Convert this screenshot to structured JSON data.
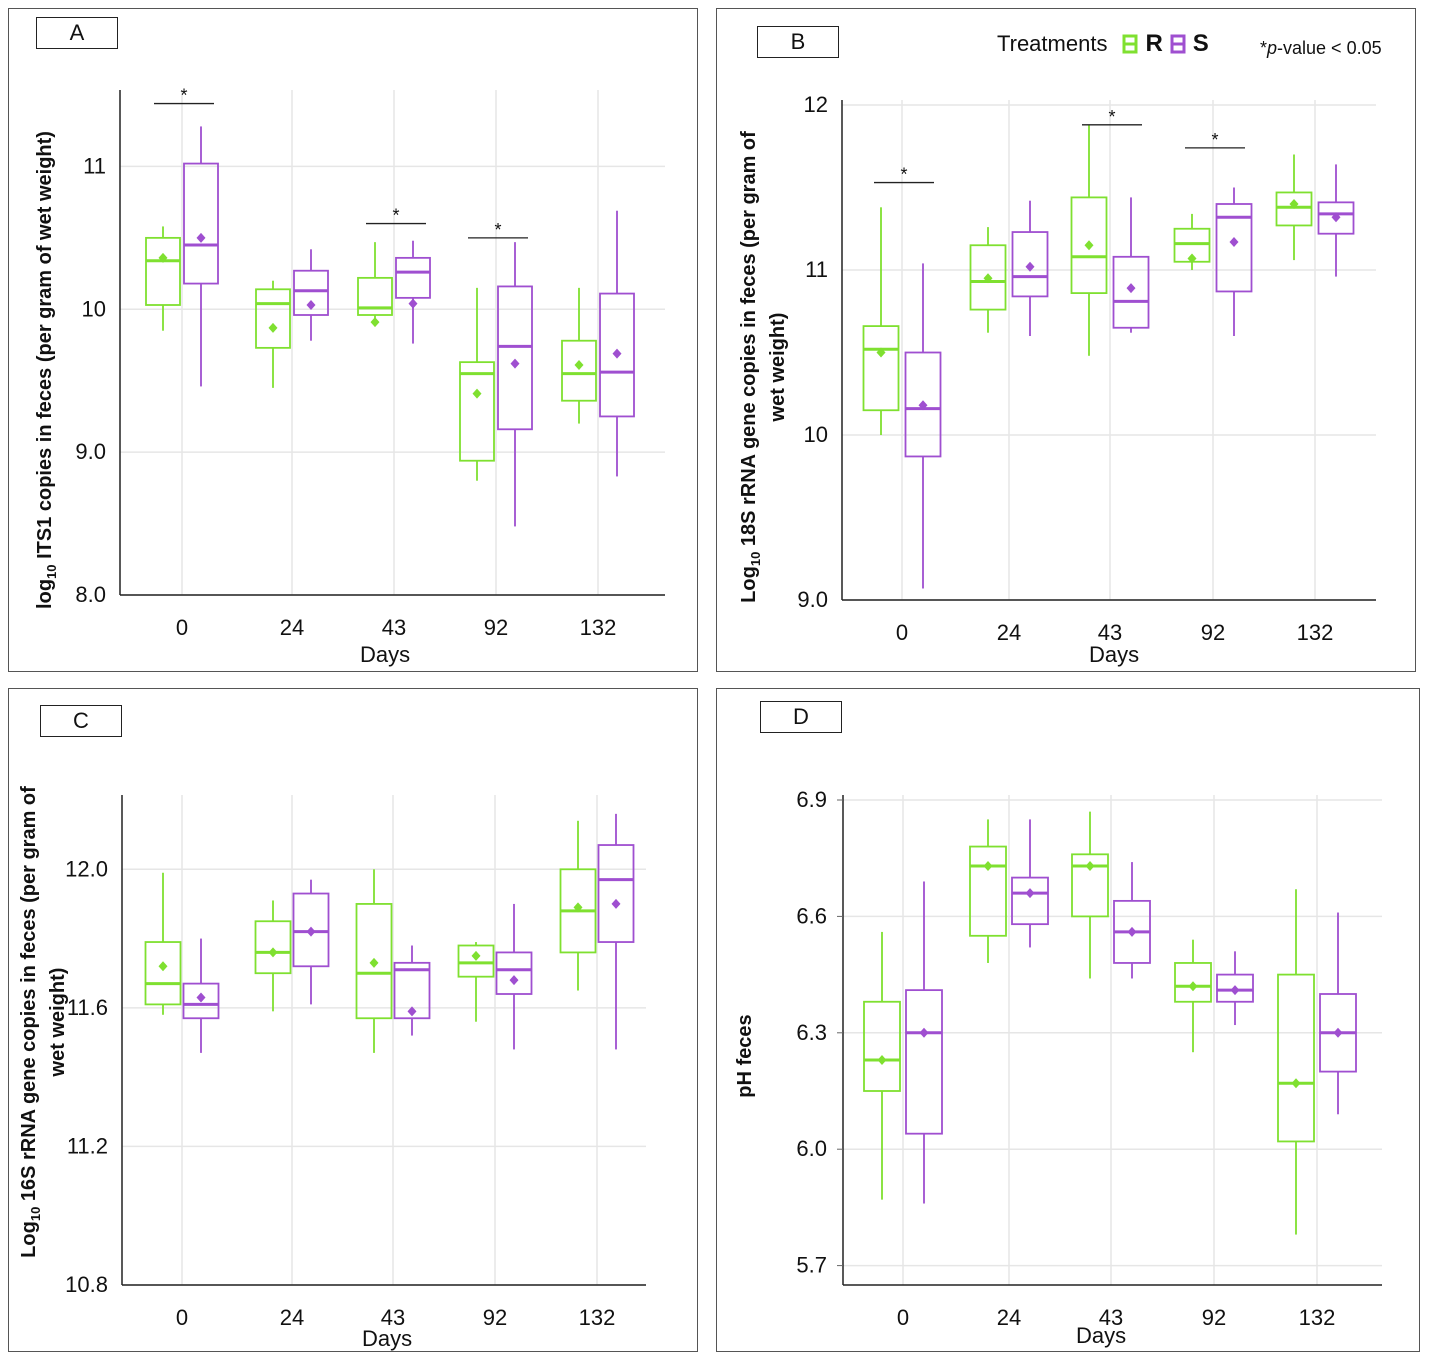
{
  "colors": {
    "R": "#7fe030",
    "S": "#9f4fd0",
    "grid": "#e6e6e6",
    "axis": "#222222"
  },
  "legend": {
    "title": "Treatments",
    "keys": [
      "R",
      "S"
    ],
    "pvalue_star": "*",
    "pvalue_italic": "p",
    "pvalue_rest": "-value < 0.05"
  },
  "panels": [
    {
      "id": "A",
      "label": "A",
      "ylabel_html": "log<sub>10</sub> ITS1 copies in feces (per gram of wet weight)",
      "chart_data": {
        "type": "boxplot",
        "xlabel": "Days",
        "categories": [
          "0",
          "24",
          "43",
          "92",
          "132"
        ],
        "ylim": [
          8.0,
          11.5
        ],
        "yticks": [
          8.0,
          9.0,
          10,
          11
        ],
        "ytick_labels": [
          "8.0",
          "9.0",
          "10",
          "11"
        ],
        "series": [
          {
            "name": "R",
            "boxes": [
              {
                "min": 9.85,
                "q1": 10.03,
                "median": 10.34,
                "q3": 10.5,
                "max": 10.58,
                "mean": 10.36
              },
              {
                "min": 9.45,
                "q1": 9.73,
                "median": 10.04,
                "q3": 10.14,
                "max": 10.2,
                "mean": 9.87
              },
              {
                "min": 9.92,
                "q1": 9.96,
                "median": 10.01,
                "q3": 10.22,
                "max": 10.47,
                "mean": 9.91
              },
              {
                "min": 8.8,
                "q1": 8.94,
                "median": 9.55,
                "q3": 9.63,
                "max": 10.15,
                "mean": 9.41
              },
              {
                "min": 9.2,
                "q1": 9.36,
                "median": 9.55,
                "q3": 9.78,
                "max": 10.15,
                "mean": 9.61
              }
            ]
          },
          {
            "name": "S",
            "boxes": [
              {
                "min": 9.46,
                "q1": 10.18,
                "median": 10.45,
                "q3": 11.02,
                "max": 11.28,
                "mean": 10.5
              },
              {
                "min": 9.78,
                "q1": 9.96,
                "median": 10.13,
                "q3": 10.27,
                "max": 10.42,
                "mean": 10.03
              },
              {
                "min": 9.76,
                "q1": 10.08,
                "median": 10.26,
                "q3": 10.36,
                "max": 10.48,
                "mean": 10.04
              },
              {
                "min": 8.48,
                "q1": 9.16,
                "median": 9.74,
                "q3": 10.16,
                "max": 10.47,
                "mean": 9.62
              },
              {
                "min": 8.83,
                "q1": 9.25,
                "median": 9.56,
                "q3": 10.11,
                "max": 10.69,
                "mean": 9.69
              }
            ]
          }
        ],
        "significance": [
          {
            "category": "0",
            "y": 11.44,
            "label": "*"
          },
          {
            "category": "43",
            "y": 10.6,
            "label": "*"
          },
          {
            "category": "92",
            "y": 10.5,
            "label": "*"
          }
        ]
      }
    },
    {
      "id": "B",
      "label": "B",
      "ylabel_html": "Log<sub>10</sub> 18S rRNA gene copies in feces (per gram of<br>wet weight)",
      "chart_data": {
        "type": "boxplot",
        "xlabel": "Days",
        "categories": [
          "0",
          "24",
          "43",
          "92",
          "132"
        ],
        "ylim": [
          9.0,
          12.0
        ],
        "yticks": [
          9.0,
          10,
          11,
          12
        ],
        "ytick_labels": [
          "9.0",
          "10",
          "11",
          "12"
        ],
        "series": [
          {
            "name": "R",
            "boxes": [
              {
                "min": 10.0,
                "q1": 10.15,
                "median": 10.52,
                "q3": 10.66,
                "max": 11.38,
                "mean": 10.5
              },
              {
                "min": 10.62,
                "q1": 10.76,
                "median": 10.93,
                "q3": 11.15,
                "max": 11.26,
                "mean": 10.95
              },
              {
                "min": 10.48,
                "q1": 10.86,
                "median": 11.08,
                "q3": 11.44,
                "max": 11.88,
                "mean": 11.15
              },
              {
                "min": 11.0,
                "q1": 11.05,
                "median": 11.16,
                "q3": 11.25,
                "max": 11.34,
                "mean": 11.07
              },
              {
                "min": 11.06,
                "q1": 11.27,
                "median": 11.38,
                "q3": 11.47,
                "max": 11.7,
                "mean": 11.4
              }
            ]
          },
          {
            "name": "S",
            "boxes": [
              {
                "min": 9.07,
                "q1": 9.87,
                "median": 10.16,
                "q3": 10.5,
                "max": 11.04,
                "mean": 10.18
              },
              {
                "min": 10.6,
                "q1": 10.84,
                "median": 10.96,
                "q3": 11.23,
                "max": 11.42,
                "mean": 11.02
              },
              {
                "min": 10.62,
                "q1": 10.65,
                "median": 10.81,
                "q3": 11.08,
                "max": 11.44,
                "mean": 10.89
              },
              {
                "min": 10.6,
                "q1": 10.87,
                "median": 11.32,
                "q3": 11.4,
                "max": 11.5,
                "mean": 11.17
              },
              {
                "min": 10.96,
                "q1": 11.22,
                "median": 11.34,
                "q3": 11.41,
                "max": 11.64,
                "mean": 11.32
              }
            ]
          }
        ],
        "significance": [
          {
            "category": "0",
            "y": 11.53,
            "label": "*"
          },
          {
            "category": "43",
            "y": 11.88,
            "label": "*"
          },
          {
            "category": "92",
            "y": 11.74,
            "label": "*"
          }
        ]
      }
    },
    {
      "id": "C",
      "label": "C",
      "ylabel_html": "Log<sub>10</sub> 16S rRNA gene copies in feces (per gram of<br>wet weight)",
      "chart_data": {
        "type": "boxplot",
        "xlabel": "Days",
        "categories": [
          "0",
          "24",
          "43",
          "92",
          "132"
        ],
        "ylim": [
          10.8,
          12.2
        ],
        "yticks": [
          10.8,
          11.2,
          11.6,
          12.0
        ],
        "ytick_labels": [
          "10.8",
          "11.2",
          "11.6",
          "12.0"
        ],
        "series": [
          {
            "name": "R",
            "boxes": [
              {
                "min": 11.58,
                "q1": 11.61,
                "median": 11.67,
                "q3": 11.79,
                "max": 11.99,
                "mean": 11.72
              },
              {
                "min": 11.59,
                "q1": 11.7,
                "median": 11.76,
                "q3": 11.85,
                "max": 11.91,
                "mean": 11.76
              },
              {
                "min": 11.47,
                "q1": 11.57,
                "median": 11.7,
                "q3": 11.9,
                "max": 12.0,
                "mean": 11.73
              },
              {
                "min": 11.56,
                "q1": 11.69,
                "median": 11.73,
                "q3": 11.78,
                "max": 11.79,
                "mean": 11.75
              },
              {
                "min": 11.65,
                "q1": 11.76,
                "median": 11.88,
                "q3": 12.0,
                "max": 12.14,
                "mean": 11.89
              }
            ]
          },
          {
            "name": "S",
            "boxes": [
              {
                "min": 11.47,
                "q1": 11.57,
                "median": 11.61,
                "q3": 11.67,
                "max": 11.8,
                "mean": 11.63
              },
              {
                "min": 11.61,
                "q1": 11.72,
                "median": 11.82,
                "q3": 11.93,
                "max": 11.97,
                "mean": 11.82
              },
              {
                "min": 11.52,
                "q1": 11.57,
                "median": 11.71,
                "q3": 11.73,
                "max": 11.78,
                "mean": 11.59
              },
              {
                "min": 11.48,
                "q1": 11.64,
                "median": 11.71,
                "q3": 11.76,
                "max": 11.9,
                "mean": 11.68
              },
              {
                "min": 11.48,
                "q1": 11.79,
                "median": 11.97,
                "q3": 12.07,
                "max": 12.16,
                "mean": 11.9
              }
            ]
          }
        ],
        "significance": []
      }
    },
    {
      "id": "D",
      "label": "D",
      "ylabel_html": "pH feces",
      "chart_data": {
        "type": "boxplot",
        "xlabel": "Days",
        "categories": [
          "0",
          "24",
          "43",
          "92",
          "132"
        ],
        "ylim": [
          5.65,
          6.9
        ],
        "yticks": [
          5.7,
          6.0,
          6.3,
          6.6,
          6.9
        ],
        "ytick_labels": [
          "5.7",
          "6.0",
          "6.3",
          "6.6",
          "6.9"
        ],
        "series": [
          {
            "name": "R",
            "boxes": [
              {
                "min": 5.87,
                "q1": 6.15,
                "median": 6.23,
                "q3": 6.38,
                "max": 6.56,
                "mean": 6.23
              },
              {
                "min": 6.48,
                "q1": 6.55,
                "median": 6.73,
                "q3": 6.78,
                "max": 6.85,
                "mean": 6.73
              },
              {
                "min": 6.44,
                "q1": 6.6,
                "median": 6.73,
                "q3": 6.76,
                "max": 6.87,
                "mean": 6.73
              },
              {
                "min": 6.25,
                "q1": 6.38,
                "median": 6.42,
                "q3": 6.48,
                "max": 6.54,
                "mean": 6.42
              },
              {
                "min": 5.78,
                "q1": 6.02,
                "median": 6.17,
                "q3": 6.45,
                "max": 6.67,
                "mean": 6.17
              }
            ]
          },
          {
            "name": "S",
            "boxes": [
              {
                "min": 5.86,
                "q1": 6.04,
                "median": 6.3,
                "q3": 6.41,
                "max": 6.69,
                "mean": 6.3
              },
              {
                "min": 6.52,
                "q1": 6.58,
                "median": 6.66,
                "q3": 6.7,
                "max": 6.85,
                "mean": 6.66
              },
              {
                "min": 6.44,
                "q1": 6.48,
                "median": 6.56,
                "q3": 6.64,
                "max": 6.74,
                "mean": 6.56
              },
              {
                "min": 6.32,
                "q1": 6.38,
                "median": 6.41,
                "q3": 6.45,
                "max": 6.51,
                "mean": 6.41
              },
              {
                "min": 6.09,
                "q1": 6.2,
                "median": 6.3,
                "q3": 6.4,
                "max": 6.61,
                "mean": 6.3
              }
            ]
          }
        ],
        "significance": []
      }
    }
  ]
}
